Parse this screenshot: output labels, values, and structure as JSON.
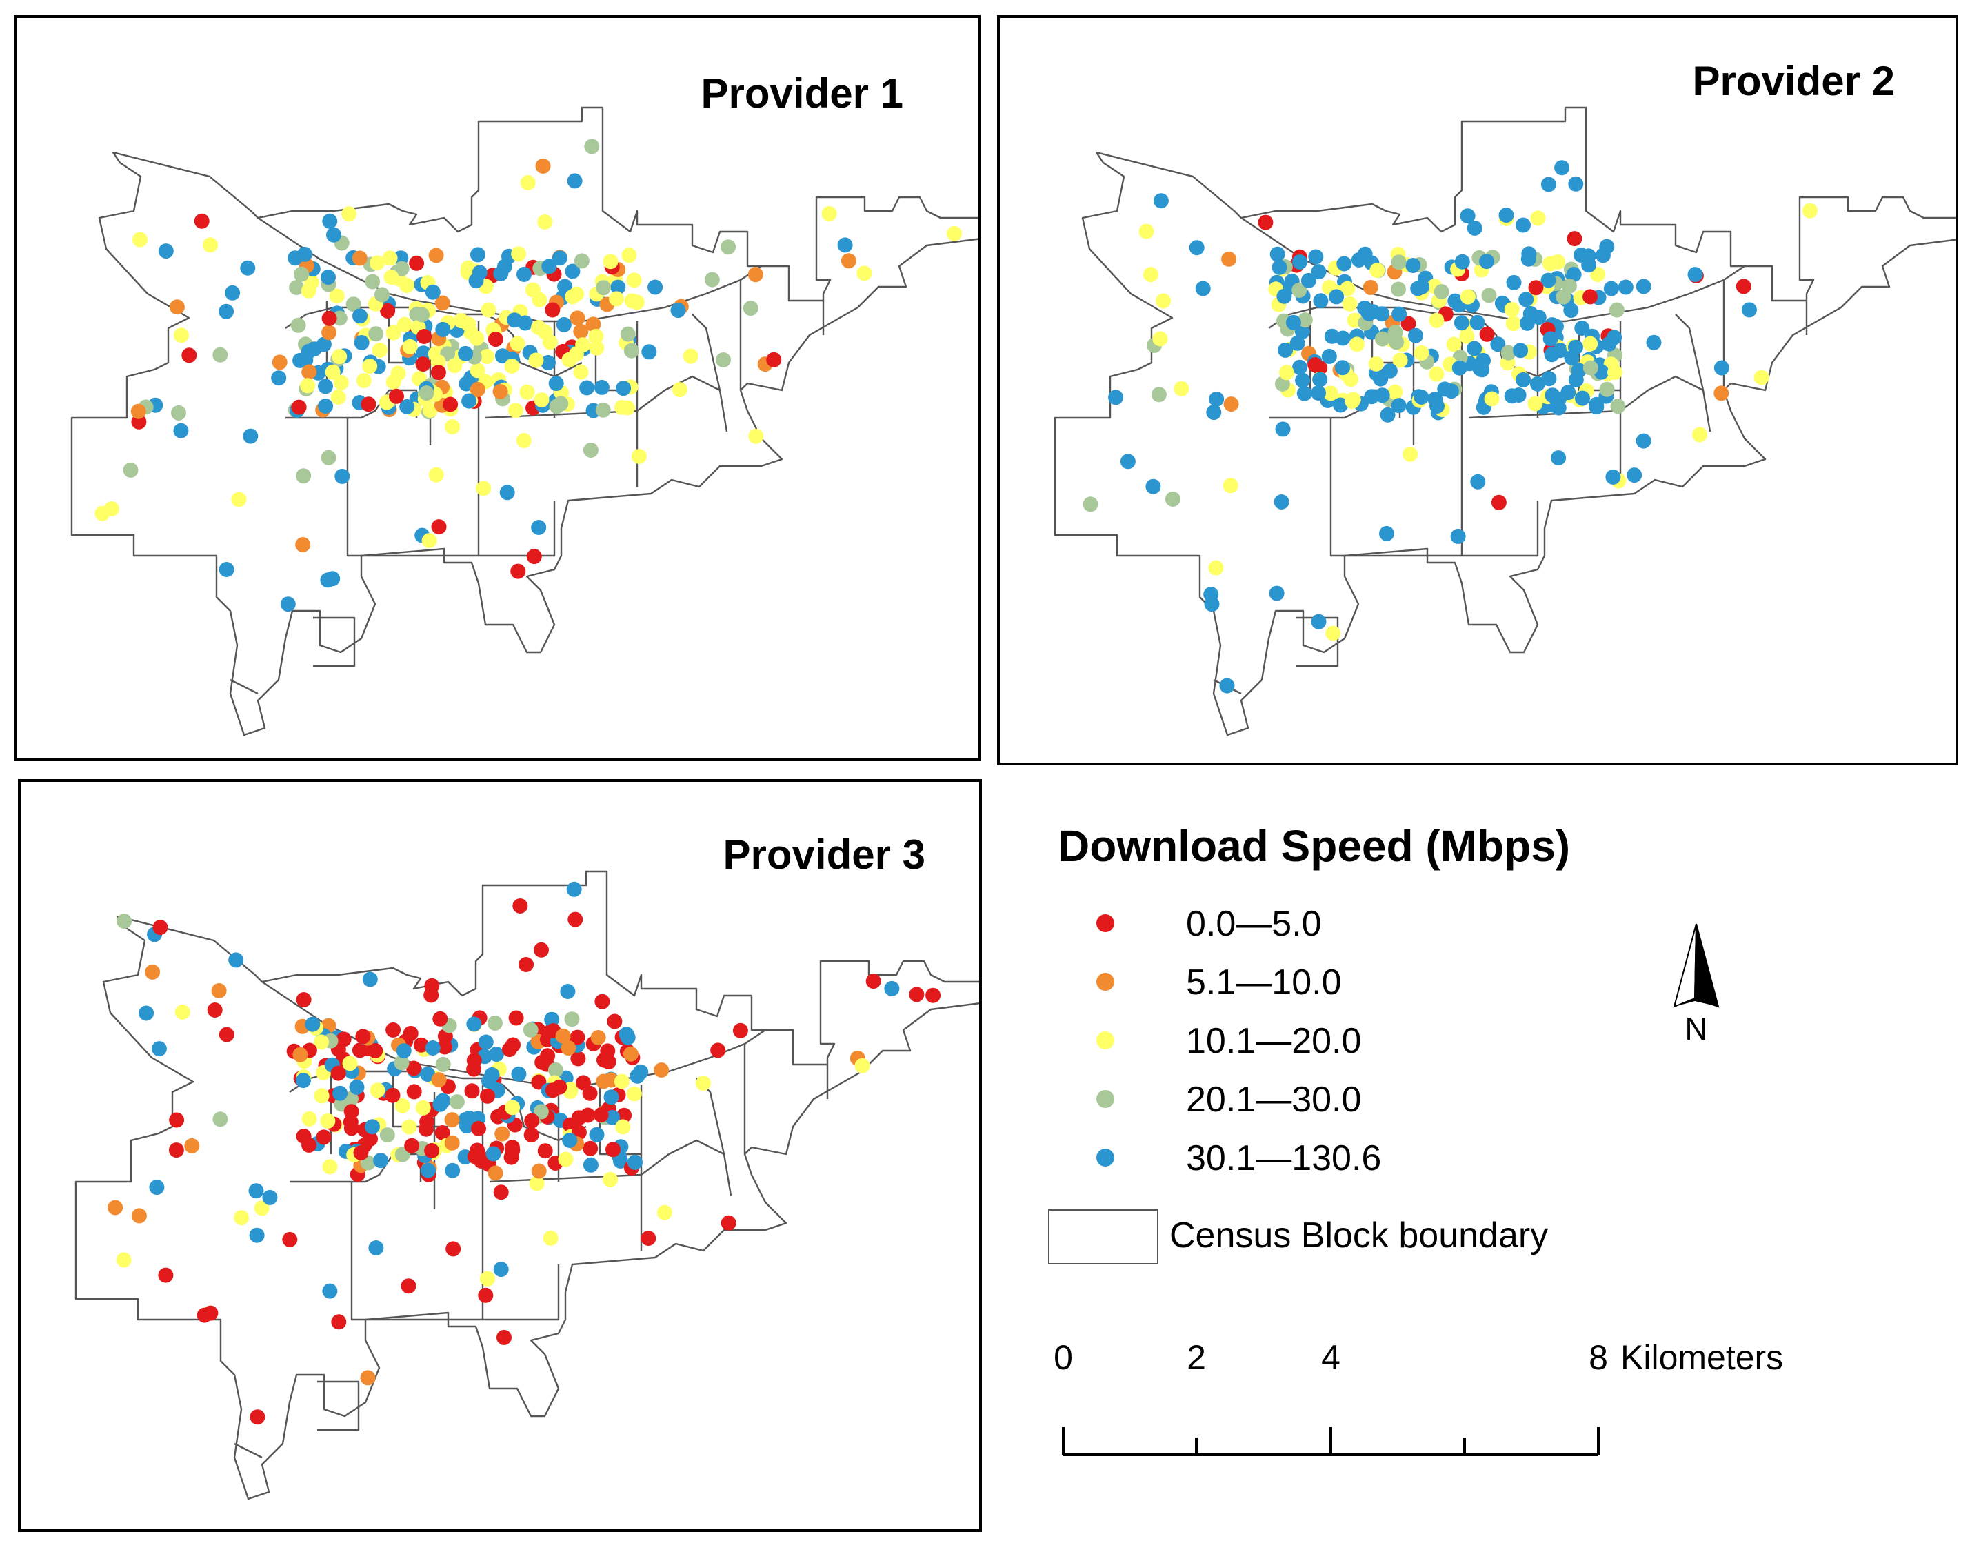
{
  "panels": [
    {
      "id": "p1",
      "title": "Provider 1",
      "seed": 11,
      "mix": [
        0.08,
        0.14,
        0.3,
        0.18,
        0.3
      ]
    },
    {
      "id": "p2",
      "title": "Provider 2",
      "seed": 29,
      "mix": [
        0.05,
        0.05,
        0.25,
        0.15,
        0.5
      ]
    },
    {
      "id": "p3",
      "title": "Provider 3",
      "seed": 53,
      "mix": [
        0.38,
        0.13,
        0.15,
        0.06,
        0.28
      ]
    }
  ],
  "legend": {
    "title": "Download Speed (Mbps)",
    "classes": [
      {
        "label": "0.0—5.0",
        "color": "#e31a1c"
      },
      {
        "label": "5.1—10.0",
        "color": "#f28a2f"
      },
      {
        "label": "10.1—20.0",
        "color": "#ffff66"
      },
      {
        "label": "20.1—30.0",
        "color": "#a8c89a"
      },
      {
        "label": "30.1—130.6",
        "color": "#2b95cf"
      }
    ],
    "boundary_label": "Census Block boundary"
  },
  "north_label": "N",
  "scale": {
    "ticks": [
      "0",
      "2",
      "4",
      "",
      "8"
    ],
    "unit": "Kilometers"
  }
}
